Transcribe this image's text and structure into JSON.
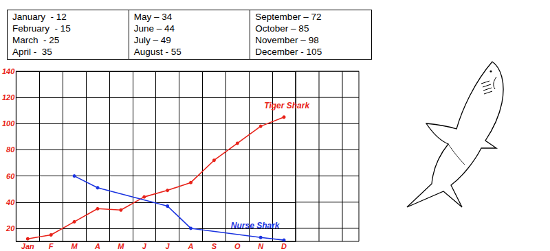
{
  "table": {
    "columns": [
      [
        "January  - 12",
        "February  - 15",
        "March  - 25",
        "April -  35"
      ],
      [
        "May – 34",
        "June – 44",
        "July – 49",
        "August - 55"
      ],
      [
        "September – 72",
        "October – 85",
        "November – 98",
        "December - 105"
      ]
    ]
  },
  "chart_data": {
    "type": "line",
    "categories": [
      "Jan",
      "F",
      "M",
      "A",
      "M",
      "J",
      "J",
      "A",
      "S",
      "O",
      "N",
      "D"
    ],
    "series": [
      {
        "name": "Tiger Shark",
        "color": "#e8231a",
        "marker": "circle",
        "values": [
          12,
          15,
          25,
          35,
          34,
          44,
          49,
          55,
          72,
          85,
          98,
          105
        ]
      },
      {
        "name": "Nurse Shark",
        "color": "#1a33e0",
        "marker": "circle",
        "values": [
          null,
          null,
          60,
          51,
          null,
          null,
          37,
          20,
          null,
          null,
          13,
          11
        ]
      }
    ],
    "ylim": [
      10,
      140
    ],
    "yticks": [
      20,
      40,
      60,
      80,
      100,
      120,
      140
    ],
    "grid": true
  }
}
